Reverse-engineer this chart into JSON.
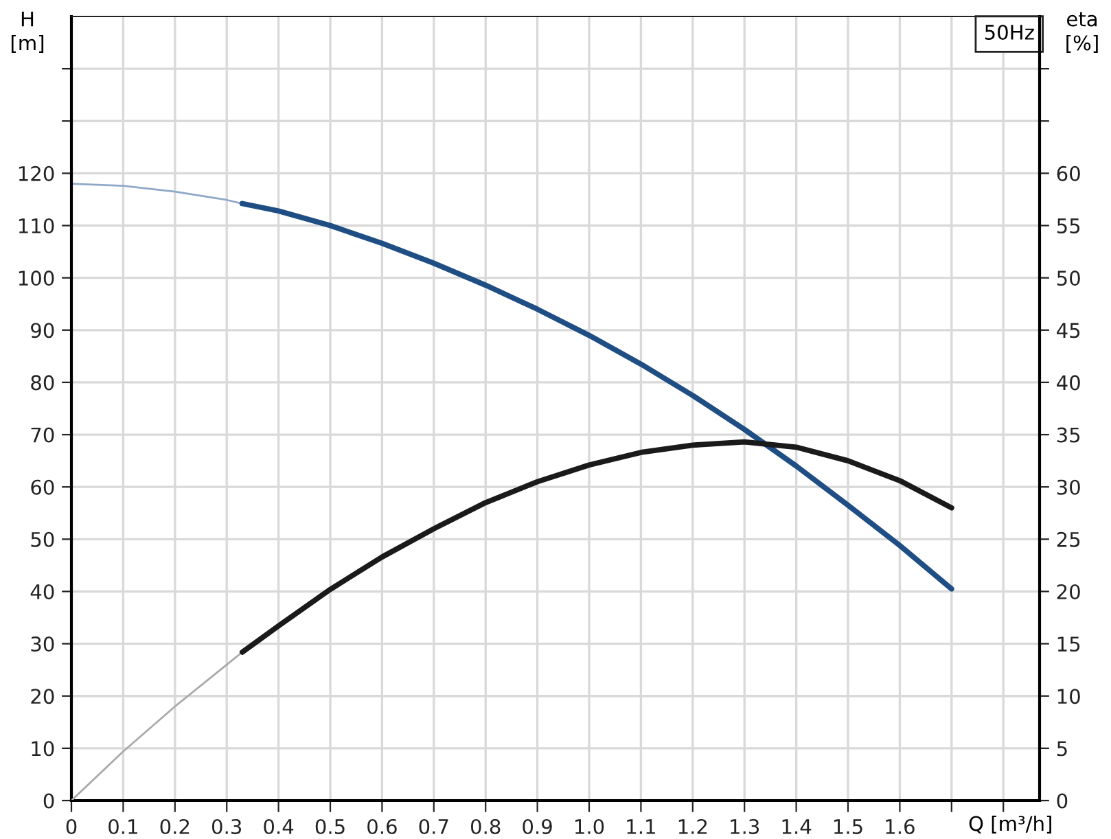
{
  "chart_data": {
    "type": "line",
    "xlabel": "Q [m³/h]",
    "ylabel": "H\n[m]",
    "y2label": "eta\n[%]",
    "annotations": [
      "50Hz"
    ],
    "xlim": [
      0,
      1.87
    ],
    "xticks": [
      0,
      0.1,
      0.2,
      0.3,
      0.4,
      0.5,
      0.6,
      0.7,
      0.8,
      0.9,
      {
        "value": 1.0,
        "label": "1.0"
      },
      1.1,
      1.2,
      1.3,
      1.4,
      1.5,
      1.6,
      {
        "value": 1.7,
        "label": null
      },
      {
        "value": 1.8,
        "label": null
      }
    ],
    "ylim": [
      0,
      150
    ],
    "yticks": [
      0,
      10,
      20,
      30,
      40,
      50,
      60,
      70,
      80,
      90,
      100,
      110,
      120,
      {
        "value": 130,
        "label": null
      },
      {
        "value": 140,
        "label": null
      }
    ],
    "y2lim": [
      0,
      75
    ],
    "y2ticks": [
      0,
      5,
      10,
      15,
      20,
      25,
      30,
      35,
      40,
      45,
      50,
      55,
      60,
      {
        "value": 65,
        "label": null
      },
      {
        "value": 70,
        "label": null
      }
    ],
    "grid": true,
    "marker": "none",
    "line_style": "solid",
    "series": [
      {
        "color": "#8fa8c8",
        "x": [
          0,
          0.1,
          0.2,
          0.3,
          0.33
        ],
        "values": [
          118,
          117.6,
          116.5,
          114.9,
          114.2
        ]
      },
      {
        "color": "#1f4e84",
        "x": [
          0.33,
          0.4,
          0.5,
          0.6,
          0.7,
          0.8,
          0.9,
          1.0,
          1.1,
          1.2,
          1.3,
          1.4,
          1.5,
          1.6,
          1.7
        ],
        "values": [
          114.2,
          112.8,
          110,
          106.6,
          102.8,
          98.6,
          94,
          89,
          83.5,
          77.5,
          71,
          64,
          56.5,
          48.8,
          40.5
        ]
      },
      {
        "color": "#aaaaaa",
        "axis": "y2",
        "x": [
          0,
          0.1,
          0.2,
          0.3,
          0.33
        ],
        "values": [
          0,
          4.7,
          9.0,
          13.0,
          14.2
        ]
      },
      {
        "color": "#1a1a1a",
        "axis": "y2",
        "x": [
          0.33,
          0.4,
          0.5,
          0.6,
          0.7,
          0.8,
          0.9,
          1.0,
          1.1,
          1.2,
          1.3,
          1.4,
          1.5,
          1.6,
          1.7
        ],
        "values": [
          14.2,
          16.7,
          20.2,
          23.3,
          26.0,
          28.5,
          30.5,
          32.1,
          33.3,
          34.0,
          34.3,
          33.8,
          32.5,
          30.6,
          28.0
        ]
      }
    ]
  }
}
